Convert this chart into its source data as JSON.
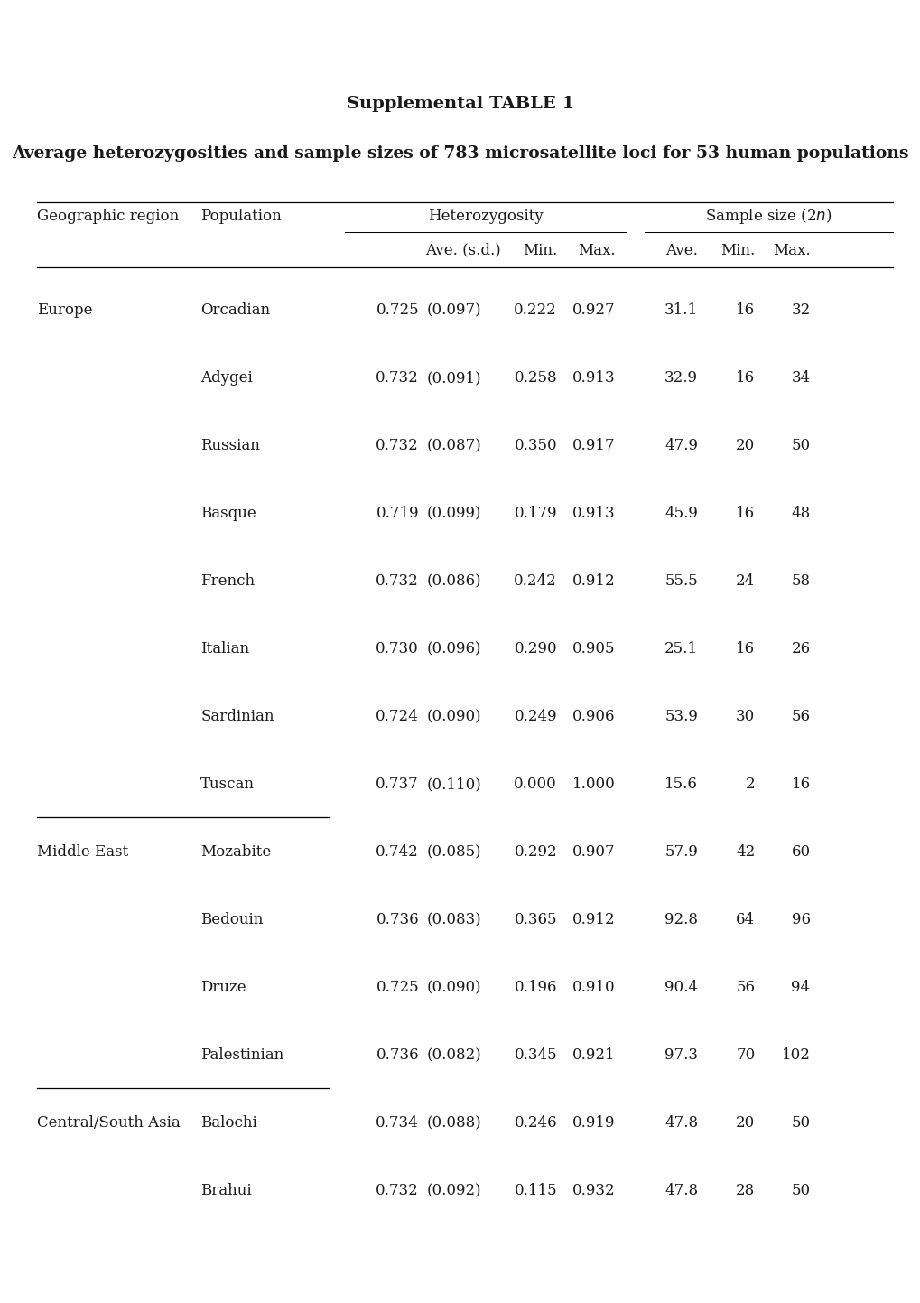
{
  "title": "Supplemental TABLE 1",
  "subtitle": "Average heterozygosities and sample sizes of 783 microsatellite loci for 53 human populations",
  "rows": [
    [
      "Europe",
      "Orcadian",
      "0.725",
      "(0.097)",
      "0.222",
      "0.927",
      "31.1",
      "16",
      "32",
      true,
      false
    ],
    [
      "",
      "Adygei",
      "0.732",
      "(0.091)",
      "0.258",
      "0.913",
      "32.9",
      "16",
      "34",
      false,
      false
    ],
    [
      "",
      "Russian",
      "0.732",
      "(0.087)",
      "0.350",
      "0.917",
      "47.9",
      "20",
      "50",
      false,
      false
    ],
    [
      "",
      "Basque",
      "0.719",
      "(0.099)",
      "0.179",
      "0.913",
      "45.9",
      "16",
      "48",
      false,
      false
    ],
    [
      "",
      "French",
      "0.732",
      "(0.086)",
      "0.242",
      "0.912",
      "55.5",
      "24",
      "58",
      false,
      false
    ],
    [
      "",
      "Italian",
      "0.730",
      "(0.096)",
      "0.290",
      "0.905",
      "25.1",
      "16",
      "26",
      false,
      false
    ],
    [
      "",
      "Sardinian",
      "0.724",
      "(0.090)",
      "0.249",
      "0.906",
      "53.9",
      "30",
      "56",
      false,
      false
    ],
    [
      "",
      "Tuscan",
      "0.737",
      "(0.110)",
      "0.000",
      "1.000",
      "15.6",
      "2",
      "16",
      false,
      true
    ],
    [
      "Middle East",
      "Mozabite",
      "0.742",
      "(0.085)",
      "0.292",
      "0.907",
      "57.9",
      "42",
      "60",
      true,
      false
    ],
    [
      "",
      "Bedouin",
      "0.736",
      "(0.083)",
      "0.365",
      "0.912",
      "92.8",
      "64",
      "96",
      false,
      false
    ],
    [
      "",
      "Druze",
      "0.725",
      "(0.090)",
      "0.196",
      "0.910",
      "90.4",
      "56",
      "94",
      false,
      false
    ],
    [
      "",
      "Palestinian",
      "0.736",
      "(0.082)",
      "0.345",
      "0.921",
      "97.3",
      "70",
      "102",
      false,
      true
    ],
    [
      "Central/South Asia",
      "Balochi",
      "0.734",
      "(0.088)",
      "0.246",
      "0.919",
      "47.8",
      "20",
      "50",
      true,
      false
    ],
    [
      "",
      "Brahui",
      "0.732",
      "(0.092)",
      "0.115",
      "0.932",
      "47.8",
      "28",
      "50",
      false,
      false
    ]
  ],
  "background_color": "#ffffff",
  "text_color": "#1a1a1a",
  "font_size": 12.0,
  "title_font_size": 14.0,
  "subtitle_font_size": 13.5
}
